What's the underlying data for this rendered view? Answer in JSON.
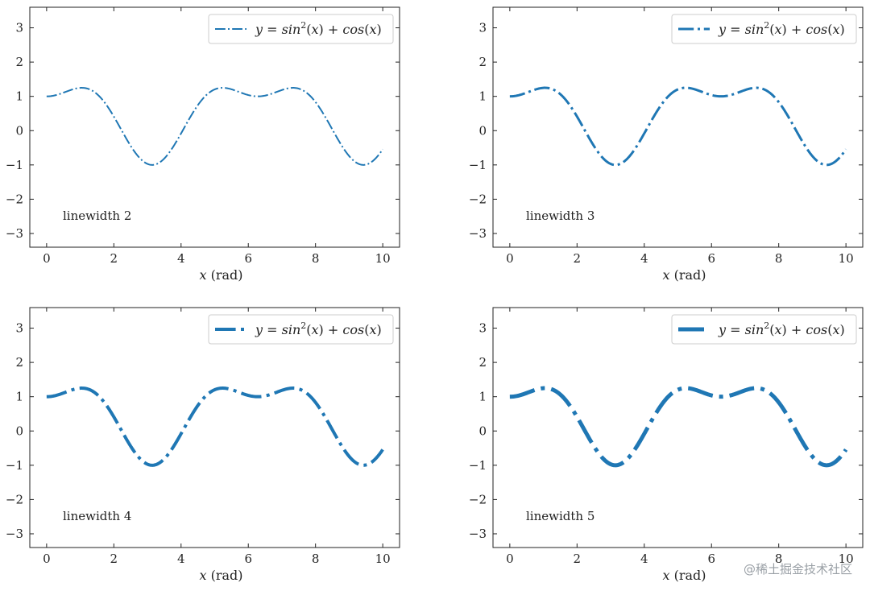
{
  "chart_data": [
    {
      "type": "line",
      "xlabel": "x (rad)",
      "xlabel_var": "x",
      "xlabel_unit": "(rad)",
      "xlim": [
        -0.5,
        10.5
      ],
      "ylim": [
        -3.4,
        3.6
      ],
      "xticks": [
        0,
        2,
        4,
        6,
        8,
        10
      ],
      "yticks": [
        -3,
        -2,
        -1,
        0,
        1,
        2,
        3
      ],
      "grid": false,
      "legend_placement": "top-right",
      "series": [
        {
          "name": "y = sin²(x) + cos(x)",
          "function": "sin^2(x) + cos(x)",
          "x_range": [
            0,
            10
          ],
          "color": "#1f77b4",
          "linestyle": "dashdot",
          "linewidth": 2
        }
      ],
      "annotation": "linewidth 2"
    },
    {
      "type": "line",
      "xlabel": "x (rad)",
      "xlabel_var": "x",
      "xlabel_unit": "(rad)",
      "xlim": [
        -0.5,
        10.5
      ],
      "ylim": [
        -3.4,
        3.6
      ],
      "xticks": [
        0,
        2,
        4,
        6,
        8,
        10
      ],
      "yticks": [
        -3,
        -2,
        -1,
        0,
        1,
        2,
        3
      ],
      "grid": false,
      "legend_placement": "top-right",
      "series": [
        {
          "name": "y = sin²(x) + cos(x)",
          "function": "sin^2(x) + cos(x)",
          "x_range": [
            0,
            10
          ],
          "color": "#1f77b4",
          "linestyle": "dashdot",
          "linewidth": 3
        }
      ],
      "annotation": "linewidth 3"
    },
    {
      "type": "line",
      "xlabel": "x (rad)",
      "xlabel_var": "x",
      "xlabel_unit": "(rad)",
      "xlim": [
        -0.5,
        10.5
      ],
      "ylim": [
        -3.4,
        3.6
      ],
      "xticks": [
        0,
        2,
        4,
        6,
        8,
        10
      ],
      "yticks": [
        -3,
        -2,
        -1,
        0,
        1,
        2,
        3
      ],
      "grid": false,
      "legend_placement": "top-right",
      "series": [
        {
          "name": "y = sin²(x) + cos(x)",
          "function": "sin^2(x) + cos(x)",
          "x_range": [
            0,
            10
          ],
          "color": "#1f77b4",
          "linestyle": "dashdot",
          "linewidth": 4
        }
      ],
      "annotation": "linewidth 4"
    },
    {
      "type": "line",
      "xlabel": "x (rad)",
      "xlabel_var": "x",
      "xlabel_unit": "(rad)",
      "xlim": [
        -0.5,
        10.5
      ],
      "ylim": [
        -3.4,
        3.6
      ],
      "xticks": [
        0,
        2,
        4,
        6,
        8,
        10
      ],
      "yticks": [
        -3,
        -2,
        -1,
        0,
        1,
        2,
        3
      ],
      "grid": false,
      "legend_placement": "top-right",
      "series": [
        {
          "name": "y = sin²(x) + cos(x)",
          "function": "sin^2(x) + cos(x)",
          "x_range": [
            0,
            10
          ],
          "color": "#1f77b4",
          "linestyle": "dashdot",
          "linewidth": 5
        }
      ],
      "annotation": "linewidth 5"
    }
  ],
  "watermark": "@稀土掘金技术社区"
}
